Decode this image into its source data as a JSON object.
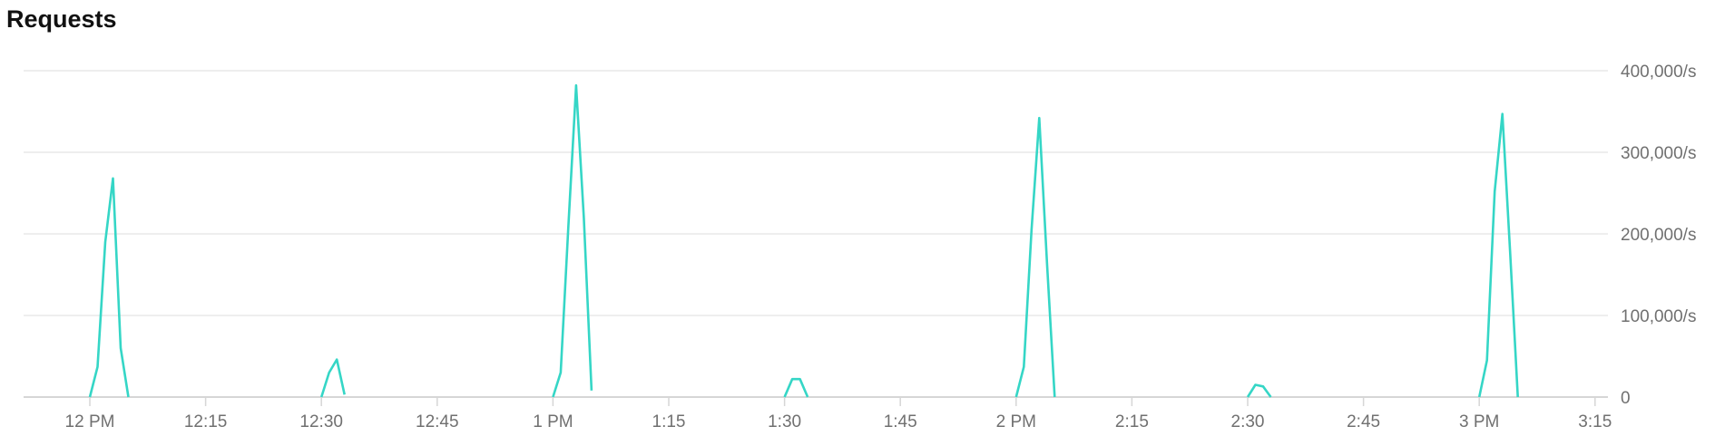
{
  "chart_data": {
    "type": "line",
    "title": "Requests",
    "xlabel": "",
    "ylabel": "",
    "x_tick_labels": [
      "12 PM",
      "12:15",
      "12:30",
      "12:45",
      "1 PM",
      "1:15",
      "1:30",
      "1:45",
      "2 PM",
      "2:15",
      "2:30",
      "2:45",
      "3 PM",
      "3:15"
    ],
    "y_tick_labels": [
      "0",
      "100,000/s",
      "200,000/s",
      "300,000/s",
      "400,000/s"
    ],
    "y_ticks": [
      0,
      100000,
      200000,
      300000,
      400000
    ],
    "ylim": [
      0,
      400000
    ],
    "xlim_minutes_after_12pm": [
      -6,
      198
    ],
    "grid": true,
    "y_axis_position": "right",
    "line_color": "#35d6c6",
    "segments": [
      {
        "x": [
          "12:00",
          "12:01",
          "12:02",
          "12:03",
          "12:04",
          "12:05"
        ],
        "y": [
          0,
          37000,
          190000,
          268000,
          60000,
          0
        ]
      },
      {
        "x": [
          "12:30",
          "12:31",
          "12:32",
          "12:33"
        ],
        "y": [
          0,
          30000,
          46000,
          3000
        ]
      },
      {
        "x": [
          "1:00",
          "1:01",
          "1:02",
          "1:03",
          "1:04",
          "1:05"
        ],
        "y": [
          0,
          30000,
          210000,
          382000,
          220000,
          8000
        ]
      },
      {
        "x": [
          "1:30",
          "1:31",
          "1:32",
          "1:33"
        ],
        "y": [
          0,
          22000,
          22000,
          0
        ]
      },
      {
        "x": [
          "2:00",
          "2:01",
          "2:02",
          "2:03",
          "2:04",
          "2:05"
        ],
        "y": [
          0,
          37000,
          205000,
          342000,
          165000,
          0
        ]
      },
      {
        "x": [
          "2:30",
          "2:31",
          "2:32",
          "2:33"
        ],
        "y": [
          0,
          15000,
          13000,
          0
        ]
      },
      {
        "x": [
          "3:00",
          "3:01",
          "3:02",
          "3:03",
          "3:04",
          "3:05"
        ],
        "y": [
          0,
          45000,
          252000,
          347000,
          178000,
          0
        ]
      }
    ]
  }
}
